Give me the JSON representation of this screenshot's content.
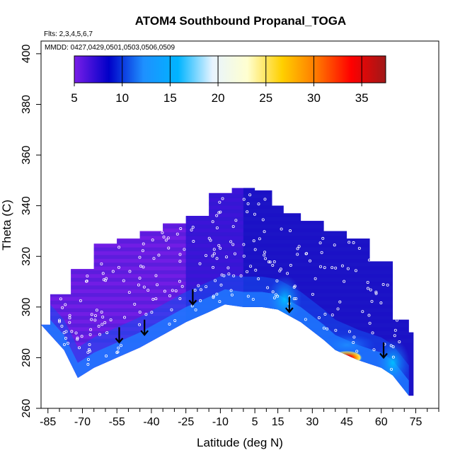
{
  "chart_data": {
    "type": "heatmap",
    "title": "ATOM4 Southbound Propanal_TOGA",
    "annotations": [
      "Flts: 2,3,4,5,6,7",
      "MMDD: 0427,0429,0501,0503,0506,0509"
    ],
    "xlabel": "Latitude (deg N)",
    "ylabel": "Theta (C)",
    "xlim": [
      -88,
      85
    ],
    "ylim": [
      260,
      405
    ],
    "x_ticks": [
      -85,
      -70,
      -55,
      -40,
      -25,
      -10,
      5,
      15,
      30,
      45,
      60,
      75
    ],
    "y_ticks": [
      260,
      280,
      300,
      320,
      340,
      360,
      380,
      400
    ],
    "colorbar": {
      "range": [
        5,
        37.5
      ],
      "ticks": [
        5,
        10,
        15,
        20,
        25,
        30,
        35
      ],
      "colors": [
        "#7a1ee8",
        "#0000c8",
        "#1e90ff",
        "#00b4ff",
        "#e8f4ff",
        "#ffffd0",
        "#ffd000",
        "#ff7800",
        "#ff0000",
        "#a01818"
      ]
    },
    "arrows": [
      {
        "x": -54,
        "theta": 287
      },
      {
        "x": -43,
        "theta": 290
      },
      {
        "x": -22,
        "theta": 302
      },
      {
        "x": 20,
        "theta": 299
      },
      {
        "x": 61,
        "theta": 281
      }
    ],
    "upper_boundary": [
      [
        -88,
        293
      ],
      [
        -80,
        305
      ],
      [
        -70,
        315
      ],
      [
        -60,
        325
      ],
      [
        -50,
        327
      ],
      [
        -40,
        330
      ],
      [
        -30,
        333
      ],
      [
        -20,
        336
      ],
      [
        -10,
        345
      ],
      [
        0,
        347
      ],
      [
        10,
        346
      ],
      [
        15,
        340
      ],
      [
        20,
        337
      ],
      [
        30,
        334
      ],
      [
        40,
        330
      ],
      [
        50,
        327
      ],
      [
        60,
        318
      ],
      [
        70,
        295
      ],
      [
        74,
        290
      ],
      [
        74,
        265
      ]
    ],
    "lower_boundary": [
      [
        -88,
        293
      ],
      [
        -78,
        283
      ],
      [
        -72,
        272
      ],
      [
        -65,
        276
      ],
      [
        -55,
        280
      ],
      [
        -45,
        284
      ],
      [
        -35,
        289
      ],
      [
        -25,
        294
      ],
      [
        -15,
        298
      ],
      [
        -8,
        301
      ],
      [
        0,
        300
      ],
      [
        8,
        300
      ],
      [
        15,
        299
      ],
      [
        25,
        294
      ],
      [
        35,
        287
      ],
      [
        40,
        283
      ],
      [
        50,
        279
      ],
      [
        60,
        276
      ],
      [
        65,
        273
      ],
      [
        72,
        265
      ]
    ],
    "features": [
      {
        "type": "peak",
        "x": 45,
        "theta": 280,
        "value": 37
      },
      {
        "type": "moderate",
        "x": 18,
        "theta": 303,
        "value": 15
      },
      {
        "type": "moderate",
        "x": 45,
        "theta": 285,
        "value": 25
      },
      {
        "type": "moderate",
        "x": 65,
        "theta": 278,
        "value": 15
      }
    ]
  }
}
